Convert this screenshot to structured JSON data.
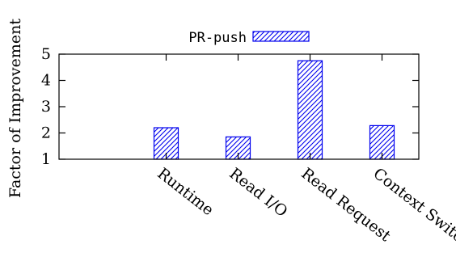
{
  "chart_data": {
    "type": "bar",
    "ylabel": "Factor of Improvement",
    "categories": [
      "Runtime",
      "Read I/O",
      "Read Request",
      "Context Switch"
    ],
    "series": [
      {
        "name": "PR-push",
        "values": [
          2.2,
          1.85,
          4.75,
          2.28
        ]
      }
    ],
    "ylim": [
      1,
      5
    ],
    "yticks": [
      "1",
      "2",
      "3",
      "4",
      "5"
    ],
    "grid": false,
    "legend": "top-center",
    "bar_pattern": "diagonal-hatch",
    "colors": {
      "bar": "#0000ee",
      "axis": "#000000"
    }
  }
}
